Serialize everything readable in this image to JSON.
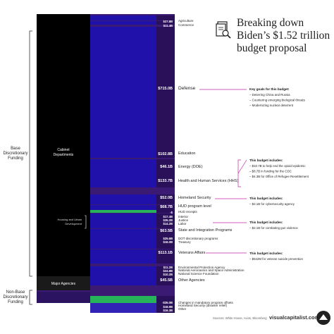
{
  "title": {
    "lines": [
      "Breaking down",
      "Biden’s $1.52 trillion",
      "budget proposal"
    ]
  },
  "source": "Sources: White House, Axios, Bloomberg",
  "brand": "visualcapitalist.com",
  "colors": {
    "background": "#ffffff",
    "base_bar": "#3b1a73",
    "cabinet_block": "#000000",
    "flow_main": "#1f10b0",
    "flow_highlight": "#27b35a",
    "target_bar": "#2a1058",
    "accent_magenta": "#c427a8"
  },
  "left_brackets": {
    "base": [
      "Base",
      "Discretionary",
      "Funding"
    ],
    "nonbase": [
      "Non-Base",
      "Discretionary",
      "Funding"
    ]
  },
  "source_nodes": {
    "cabinet": "Cabinet Departments",
    "housing": "Housing and Urban Development",
    "major": "Major Agencies"
  },
  "chart_data": {
    "type": "sankey",
    "title": "Breaking down Biden’s $1.52 trillion budget proposal",
    "unit": "USD",
    "targets": [
      {
        "group": "cabinet",
        "name": "Agriculture",
        "value_label": "$27.8B",
        "value": 27.8
      },
      {
        "group": "cabinet",
        "name": "Commerce",
        "value_label": "$11.4B",
        "value": 11.4
      },
      {
        "group": "cabinet",
        "name": "Defense",
        "value_label": "$715.0B",
        "value": 715.0
      },
      {
        "group": "cabinet",
        "name": "Education",
        "value_label": "$102.8B",
        "value": 102.8
      },
      {
        "group": "cabinet",
        "name": "Energy (DOE)",
        "value_label": "$46.1B",
        "value": 46.1
      },
      {
        "group": "cabinet",
        "name": "Health and Human Services (HHS)",
        "value_label": "$133.7B",
        "value": 133.7
      },
      {
        "group": "cabinet",
        "name": "Homeland Security",
        "value_label": "$52.0B",
        "value": 52.0
      },
      {
        "group": "cabinet",
        "name": "HUD program level",
        "value_label": "$68.7B",
        "value": 68.7
      },
      {
        "group": "housing",
        "name": "HUD receipts",
        "value_label": "-$",
        "value": null
      },
      {
        "group": "cabinet",
        "name": "Interior",
        "value_label": "$17.4B",
        "value": 17.4
      },
      {
        "group": "cabinet",
        "name": "Justice",
        "value_label": "$35.2B",
        "value": 35.2
      },
      {
        "group": "cabinet",
        "name": "Labor",
        "value_label": "$14.2B",
        "value": 14.2
      },
      {
        "group": "cabinet",
        "name": "State and Integration Programs",
        "value_label": "$63.5B",
        "value": 63.5
      },
      {
        "group": "cabinet",
        "name": "DOT discretionary programs",
        "value_label": "$25.6B",
        "value": 25.6
      },
      {
        "group": "cabinet",
        "name": "Treasury",
        "value_label": "$16.0B",
        "value": 16.0
      },
      {
        "group": "cabinet",
        "name": "Veterans Affairs",
        "value_label": "$113.1B",
        "value": 113.1
      },
      {
        "group": "major",
        "name": "Environmental Protection Agency",
        "value_label": "$11.2B",
        "value": 11.2
      },
      {
        "group": "major",
        "name": "National Aeronautics and Space Administration",
        "value_label": "$24.8B",
        "value": 24.8
      },
      {
        "group": "major",
        "name": "National Science Foundation",
        "value_label": "$10.2B",
        "value": 10.2
      },
      {
        "group": "major",
        "name": "Other Agencies",
        "value_label": "$45.5B",
        "value": 45.5
      },
      {
        "group": "nonbase",
        "name": "Changes in mandatory program offsets",
        "value_label": "-$35.0B",
        "value": -35.0
      },
      {
        "group": "nonbase",
        "name": "Homeland Security (disaster relief)",
        "value_label": "$18.9B",
        "value": 18.9
      },
      {
        "group": "nonbase",
        "name": "Other",
        "value_label": "$16.3B",
        "value": 16.3
      }
    ],
    "annotations": [
      {
        "heading": "Key goals for this budget:",
        "items": [
          "Deterring China and Russia",
          "Countering emerging biological threats",
          "Modernizing nuclear deterrent"
        ]
      },
      {
        "heading": "This budget includes:",
        "items": [
          "$10.7B to help end the opioid epidemic",
          "$8.7B in funding for the CDC",
          "$4.3B for Office of Refugee Resettlement"
        ]
      },
      {
        "heading": "This budget includes:",
        "items": [
          "$2.1B for cybersecurity agency"
        ]
      },
      {
        "heading": "This budget includes:",
        "items": [
          "$2.1B for combating gun violence"
        ]
      },
      {
        "heading": "This budget includes:",
        "items": [
          "$542M for veteran suicide prevention"
        ]
      }
    ]
  }
}
